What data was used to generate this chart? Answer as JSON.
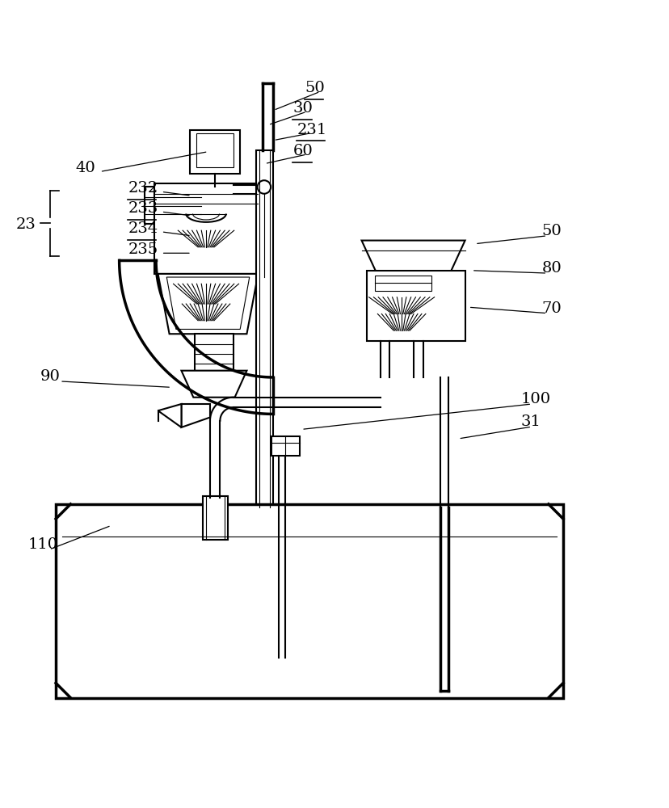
{
  "bg_color": "#ffffff",
  "line_color": "#000000",
  "label_color": "#000000",
  "figsize": [
    8.29,
    10.0
  ],
  "dpi": 100
}
